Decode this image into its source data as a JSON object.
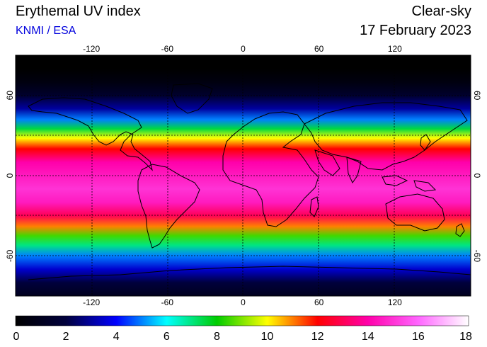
{
  "header": {
    "title": "Erythemal UV index",
    "source": "KNMI / ESA",
    "sky_condition": "Clear-sky",
    "date": "17 February 2023"
  },
  "map": {
    "lon_ticks": [
      -120,
      -60,
      0,
      60,
      120
    ],
    "lat_ticks": [
      60,
      0,
      -60
    ],
    "lon_range": [
      -180,
      180
    ],
    "lat_range": [
      -90,
      90
    ],
    "gridlines": "dashed",
    "uv_by_latitude": [
      {
        "lat": 90,
        "uv": 0
      },
      {
        "lat": 80,
        "uv": 0
      },
      {
        "lat": 70,
        "uv": 0.5
      },
      {
        "lat": 60,
        "uv": 1.5
      },
      {
        "lat": 50,
        "uv": 3
      },
      {
        "lat": 42,
        "uv": 5
      },
      {
        "lat": 35,
        "uv": 7.5
      },
      {
        "lat": 28,
        "uv": 10
      },
      {
        "lat": 20,
        "uv": 12
      },
      {
        "lat": 10,
        "uv": 14
      },
      {
        "lat": 0,
        "uv": 14.5
      },
      {
        "lat": -10,
        "uv": 15
      },
      {
        "lat": -20,
        "uv": 14.5
      },
      {
        "lat": -30,
        "uv": 13
      },
      {
        "lat": -38,
        "uv": 11
      },
      {
        "lat": -45,
        "uv": 8.5
      },
      {
        "lat": -52,
        "uv": 7
      },
      {
        "lat": -60,
        "uv": 5
      },
      {
        "lat": -70,
        "uv": 3.5
      },
      {
        "lat": -80,
        "uv": 2
      },
      {
        "lat": -90,
        "uv": 1
      }
    ]
  },
  "colorbar": {
    "min": 0,
    "max": 18,
    "tick_labels": [
      "0",
      "2",
      "4",
      "6",
      "8",
      "10",
      "12",
      "14",
      "16",
      "18"
    ],
    "colors": [
      "#000000",
      "#00003c",
      "#0000ff",
      "#00ffff",
      "#00cc00",
      "#ffff00",
      "#ff0000",
      "#ff00aa",
      "#ff66ff",
      "#ffffff"
    ]
  }
}
